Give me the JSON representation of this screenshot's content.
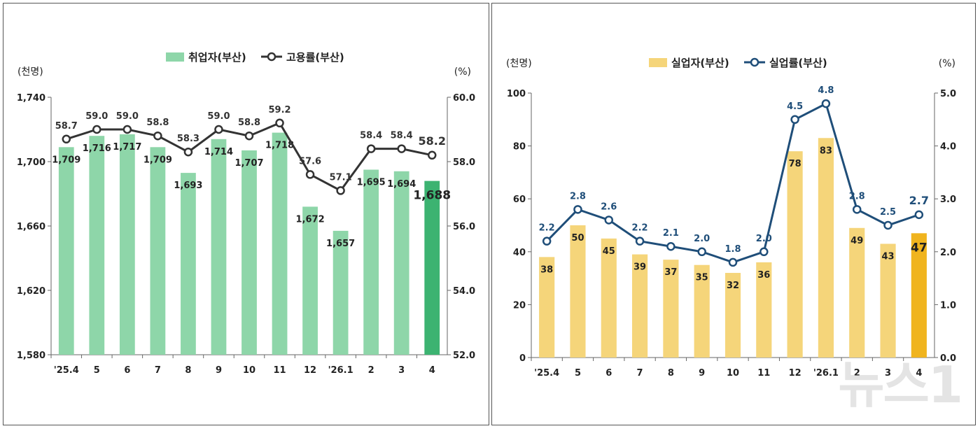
{
  "chart_data": [
    {
      "type": "bar",
      "categories": [
        "'25.4",
        "5",
        "6",
        "7",
        "8",
        "9",
        "10",
        "11",
        "12",
        "'26.1",
        "2",
        "3",
        "4"
      ],
      "series": [
        {
          "name": "취업자(부산)",
          "type": "bar",
          "axis": "left",
          "values": [
            1709,
            1716,
            1717,
            1709,
            1693,
            1714,
            1707,
            1718,
            1672,
            1657,
            1695,
            1694,
            1688
          ],
          "labels": [
            "1,709",
            "1,716",
            "1,717",
            "1,709",
            "1,693",
            "1,714",
            "1,707",
            "1,718",
            "1,672",
            "1,657",
            "1,695",
            "1,694",
            "1,688"
          ]
        },
        {
          "name": "고용률(부산)",
          "type": "line",
          "axis": "right",
          "values": [
            58.7,
            59.0,
            59.0,
            58.8,
            58.3,
            59.0,
            58.8,
            59.2,
            57.6,
            57.1,
            58.4,
            58.4,
            58.2
          ],
          "labels": [
            "58.7",
            "59.0",
            "59.0",
            "58.8",
            "58.3",
            "59.0",
            "58.8",
            "59.2",
            "57.6",
            "57.1",
            "58.4",
            "58.4",
            "58.2"
          ]
        }
      ],
      "left_unit": "(천명)",
      "right_unit": "(%)",
      "ylim_left": [
        1580,
        1740
      ],
      "ylim_right": [
        52.0,
        60.0
      ],
      "yticks_left": [
        "1,580",
        "1,620",
        "1,660",
        "1,700",
        "1,740"
      ],
      "yticks_right": [
        "52.0",
        "54.0",
        "56.0",
        "58.0",
        "60.0"
      ],
      "legend": "top-center",
      "colors": {
        "bar": "#8ed6a9",
        "bar_highlight": "#3cb371",
        "line": "#333333"
      }
    },
    {
      "type": "bar",
      "categories": [
        "'25.4",
        "5",
        "6",
        "7",
        "8",
        "9",
        "10",
        "11",
        "12",
        "'26.1",
        "2",
        "3",
        "4"
      ],
      "series": [
        {
          "name": "실업자(부산)",
          "type": "bar",
          "axis": "left",
          "values": [
            38,
            50,
            45,
            39,
            37,
            35,
            32,
            36,
            78,
            83,
            49,
            43,
            47
          ],
          "labels": [
            "38",
            "50",
            "45",
            "39",
            "37",
            "35",
            "32",
            "36",
            "78",
            "83",
            "49",
            "43",
            "47"
          ]
        },
        {
          "name": "실업률(부산)",
          "type": "line",
          "axis": "right",
          "values": [
            2.2,
            2.8,
            2.6,
            2.2,
            2.1,
            2.0,
            1.8,
            2.0,
            4.5,
            4.8,
            2.8,
            2.5,
            2.7
          ],
          "labels": [
            "2.2",
            "2.8",
            "2.6",
            "2.2",
            "2.1",
            "2.0",
            "1.8",
            "2.0",
            "4.5",
            "4.8",
            "2.8",
            "2.5",
            "2.7"
          ]
        }
      ],
      "left_unit": "(천명)",
      "right_unit": "(%)",
      "ylim_left": [
        0,
        100
      ],
      "ylim_right": [
        0.0,
        5.0
      ],
      "yticks_left": [
        "0",
        "20",
        "40",
        "60",
        "80",
        "100"
      ],
      "yticks_right": [
        "0.0",
        "1.0",
        "2.0",
        "3.0",
        "4.0",
        "5.0"
      ],
      "legend": "top-center",
      "colors": {
        "bar": "#f5d57a",
        "bar_highlight": "#f0b41e",
        "line": "#1f4e79",
        "line_label": "#1f4e79"
      }
    }
  ],
  "watermark": "뉴스1"
}
